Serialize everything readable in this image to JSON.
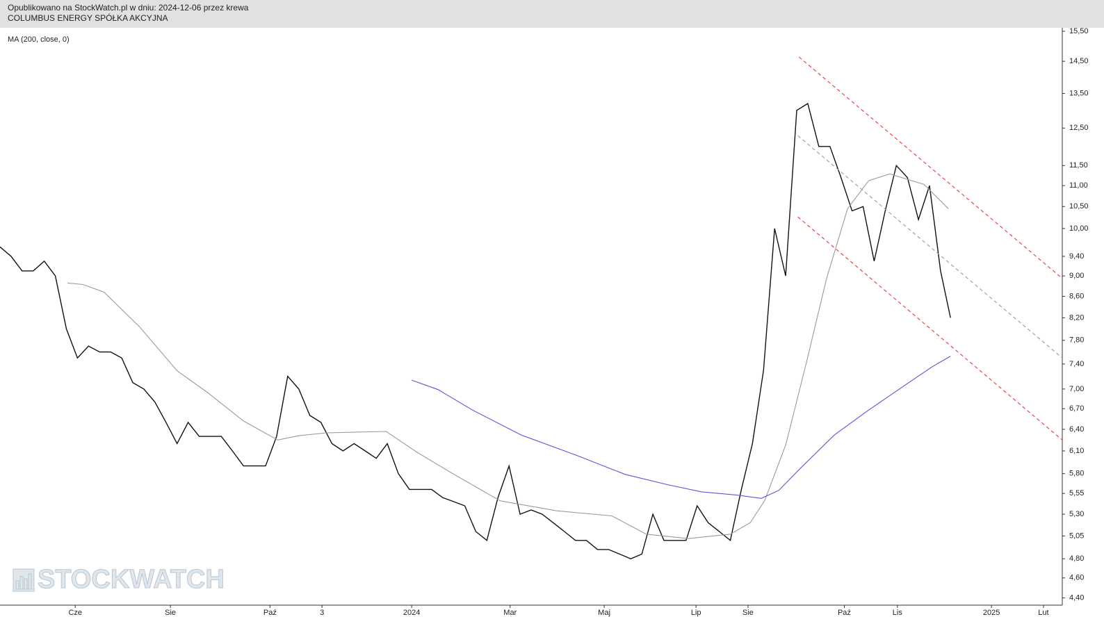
{
  "header": {
    "line1": "Opublikowano na StockWatch.pl w dniu: 2024-12-06 przez krewa",
    "line2": "COLUMBUS ENERGY SPÓŁKA AKCYJNA"
  },
  "watermark": "STOCKWATCH",
  "chart_data": {
    "type": "line",
    "title": "MA (200, close, 0)",
    "log_scale": true,
    "xlim": [
      0,
      96
    ],
    "xticks": [
      {
        "value": 6.8,
        "label": "Cze"
      },
      {
        "value": 15.4,
        "label": "Sie"
      },
      {
        "value": 24.4,
        "label": "Paź"
      },
      {
        "value": 29.1,
        "label": "3"
      },
      {
        "value": 37.2,
        "label": "2024"
      },
      {
        "value": 46.1,
        "label": "Mar"
      },
      {
        "value": 54.6,
        "label": "Maj"
      },
      {
        "value": 62.9,
        "label": "Lip"
      },
      {
        "value": 67.6,
        "label": "Sie"
      },
      {
        "value": 76.3,
        "label": "Paź"
      },
      {
        "value": 81.1,
        "label": "Lis"
      },
      {
        "value": 89.6,
        "label": "2025"
      },
      {
        "value": 94.3,
        "label": "Lut"
      }
    ],
    "ylim": [
      4.33,
      15.62
    ],
    "yticks": [
      {
        "value": 15.5,
        "label": "15,50"
      },
      {
        "value": 14.5,
        "label": "14,50"
      },
      {
        "value": 13.5,
        "label": "13,50"
      },
      {
        "value": 12.5,
        "label": "12,50"
      },
      {
        "value": 11.5,
        "label": "11,50"
      },
      {
        "value": 11,
        "label": "11,00"
      },
      {
        "value": 10.5,
        "label": "10,50"
      },
      {
        "value": 10,
        "label": "10,00"
      },
      {
        "value": 9.4,
        "label": "9,40"
      },
      {
        "value": 9,
        "label": "9,00"
      },
      {
        "value": 8.6,
        "label": "8,60"
      },
      {
        "value": 8.2,
        "label": "8,20"
      },
      {
        "value": 7.8,
        "label": "7,80"
      },
      {
        "value": 7.4,
        "label": "7,40"
      },
      {
        "value": 7,
        "label": "7,00"
      },
      {
        "value": 6.7,
        "label": "6,70"
      },
      {
        "value": 6.4,
        "label": "6,40"
      },
      {
        "value": 6.1,
        "label": "6,10"
      },
      {
        "value": 5.8,
        "label": "5,80"
      },
      {
        "value": 5.55,
        "label": "5,55"
      },
      {
        "value": 5.3,
        "label": "5,30"
      },
      {
        "value": 5.05,
        "label": "5,05"
      },
      {
        "value": 4.8,
        "label": "4,80"
      },
      {
        "value": 4.6,
        "label": "4,60"
      },
      {
        "value": 4.4,
        "label": "4,40"
      }
    ],
    "series": [
      {
        "color": "#111111",
        "dash": false,
        "x": [
          0,
          1,
          2,
          3,
          4,
          5,
          6,
          7,
          8,
          9,
          10,
          11,
          12,
          13,
          14,
          15,
          16,
          17,
          18,
          19,
          20,
          21,
          22,
          23,
          24,
          25,
          26,
          27,
          28,
          29,
          30,
          31,
          32,
          33,
          34,
          35,
          36,
          37,
          38,
          39,
          40,
          41,
          42,
          43,
          44,
          45,
          46,
          47,
          48,
          49,
          50,
          51,
          52,
          53,
          54,
          55,
          56,
          57,
          58,
          59,
          60,
          61,
          62,
          63,
          64,
          65,
          66,
          67,
          68,
          69,
          70,
          71,
          72,
          73,
          74,
          75,
          76,
          77,
          78,
          79,
          80,
          81,
          82,
          83,
          84,
          85,
          85.9
        ],
        "values": [
          9.6,
          9.4,
          9.1,
          9.1,
          9.3,
          9.0,
          8.0,
          7.5,
          7.7,
          7.6,
          7.6,
          7.5,
          7.1,
          7.0,
          6.8,
          6.5,
          6.2,
          6.5,
          6.3,
          6.3,
          6.3,
          6.1,
          5.9,
          5.9,
          5.9,
          6.3,
          7.2,
          7.0,
          6.6,
          6.5,
          6.2,
          6.1,
          6.2,
          6.1,
          6.0,
          6.2,
          5.8,
          5.6,
          5.6,
          5.6,
          5.5,
          5.45,
          5.4,
          5.1,
          5.0,
          5.5,
          5.9,
          5.3,
          5.35,
          5.3,
          5.2,
          5.1,
          5.0,
          5.0,
          4.9,
          4.9,
          4.85,
          4.8,
          4.85,
          5.3,
          5.0,
          5.0,
          5.0,
          5.4,
          5.2,
          5.1,
          5.0,
          5.6,
          6.2,
          7.3,
          10.0,
          9.0,
          13.0,
          13.2,
          12.0,
          12.0,
          11.2,
          10.4,
          10.5,
          9.3,
          10.4,
          11.5,
          11.2,
          10.2,
          11.0,
          9.1,
          8.2
        ]
      },
      {
        "color": "#9a9a9a",
        "dash": false,
        "x": [
          6.1,
          7.5,
          9.4,
          12.6,
          16.0,
          18.8,
          22.0,
          25.1,
          27.0,
          29.5,
          34.9,
          37.7,
          40.8,
          45.2,
          50.3,
          55.3,
          58.4,
          62.2,
          66.0,
          67.8,
          69.1,
          71.0,
          72.9,
          74.7,
          76.6,
          78.5,
          80.4,
          83.5,
          85.7
        ],
        "values": [
          8.86,
          8.83,
          8.68,
          8.04,
          7.29,
          6.94,
          6.52,
          6.25,
          6.31,
          6.35,
          6.37,
          6.08,
          5.81,
          5.46,
          5.34,
          5.28,
          5.07,
          5.02,
          5.07,
          5.2,
          5.46,
          6.18,
          7.44,
          8.95,
          10.45,
          11.12,
          11.29,
          11.03,
          10.45
        ]
      },
      {
        "color": "#5555dd",
        "dash": false,
        "x": [
          37.2,
          39.6,
          42.7,
          47.1,
          52.1,
          56.5,
          60.3,
          63.4,
          66.6,
          68.8,
          70.4,
          72.2,
          75.4,
          78.5,
          81.7,
          84.2,
          85.9
        ],
        "values": [
          7.14,
          6.99,
          6.68,
          6.32,
          6.04,
          5.79,
          5.66,
          5.57,
          5.53,
          5.49,
          5.59,
          5.85,
          6.32,
          6.68,
          7.05,
          7.35,
          7.53
        ]
      },
      {
        "color": "#e23a3a",
        "dash": true,
        "x": [
          72.2,
          96
        ],
        "values": [
          14.64,
          8.95
        ]
      },
      {
        "color": "#e23a3a",
        "dash": true,
        "x": [
          72.1,
          96
        ],
        "values": [
          10.26,
          6.25
        ]
      },
      {
        "color": "#9a9a9a",
        "dash": true,
        "x": [
          72.1,
          96
        ],
        "values": [
          12.29,
          7.5
        ]
      }
    ]
  }
}
